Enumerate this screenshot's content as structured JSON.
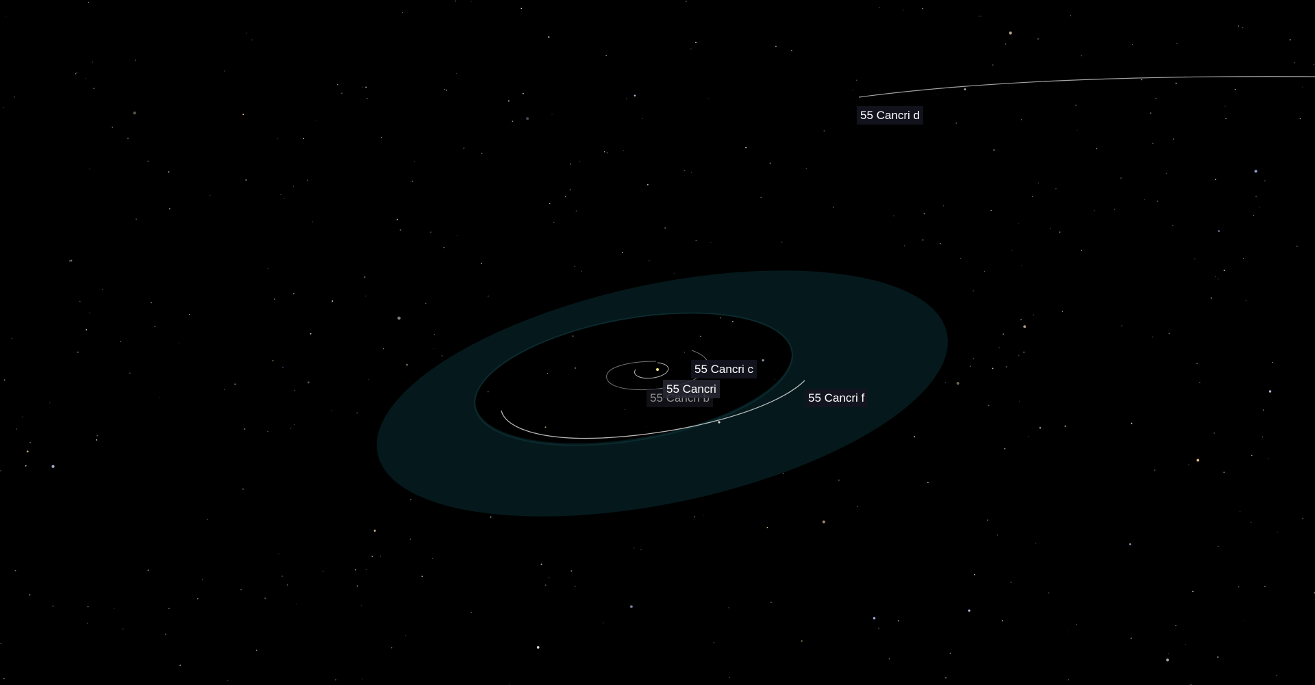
{
  "labels": {
    "planet_d": "55 Cancri d",
    "planet_c": "55 Cancri c",
    "star": "55 Cancri",
    "planet_b": "55 Cancri b",
    "planet_f": "55 Cancri f"
  },
  "colors": {
    "background": "#000000",
    "habitable_zone": "#05191c",
    "orbit_line": "#d9d9d9",
    "label_background": "#14141f",
    "label_text": "#ffffff"
  }
}
